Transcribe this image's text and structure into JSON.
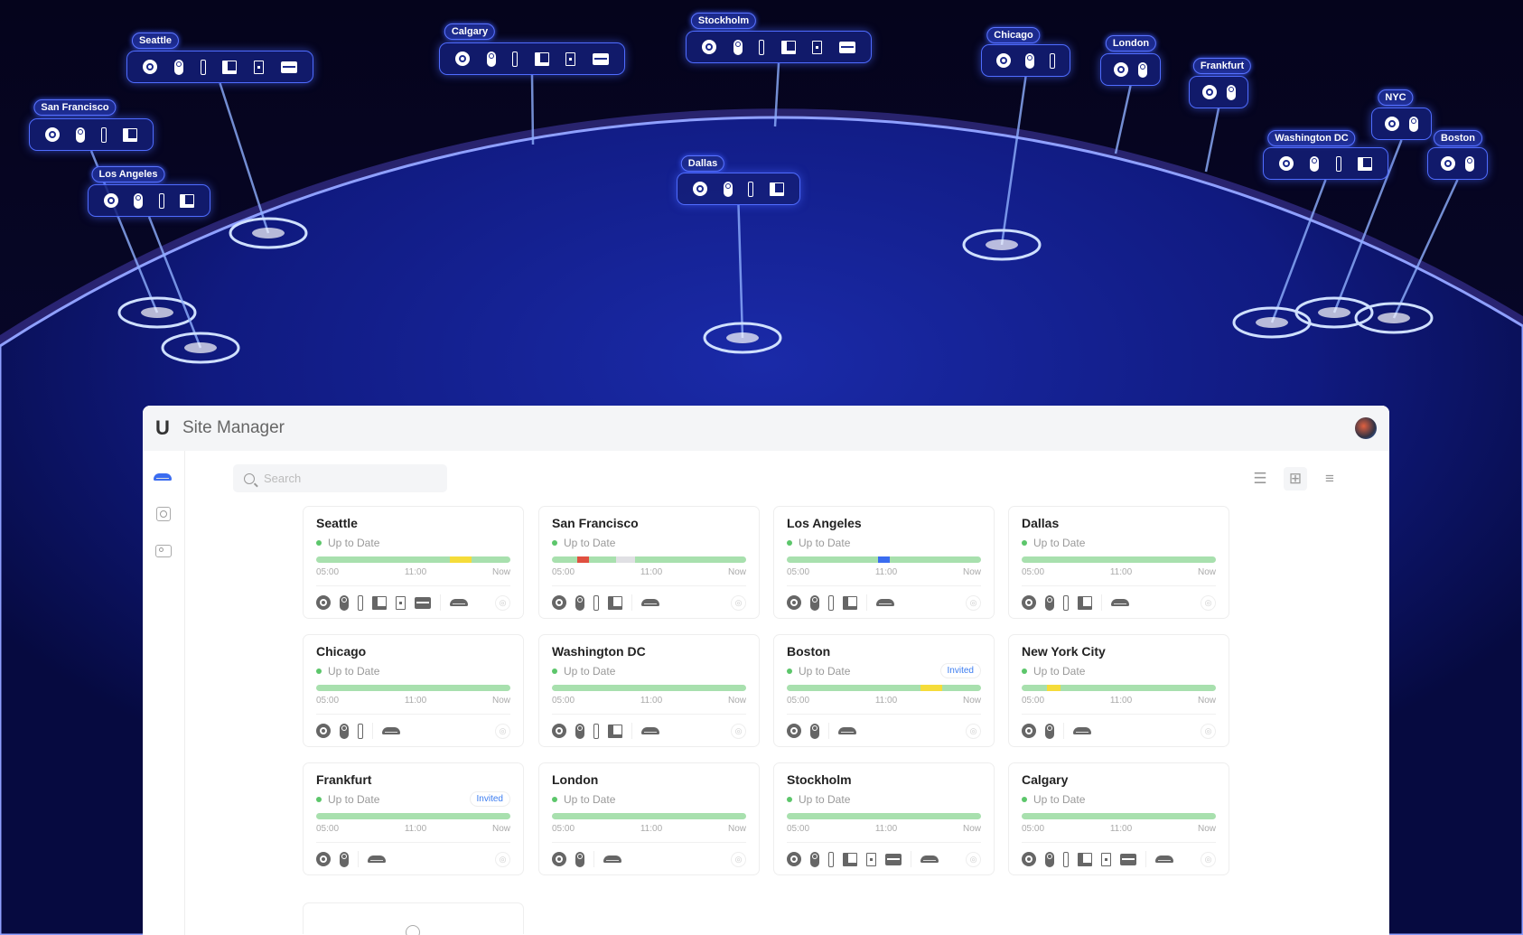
{
  "app": {
    "title": "Site Manager",
    "logo": "U",
    "search_placeholder": "Search"
  },
  "toolbar": {
    "list_view": "list-icon",
    "grid_view": "grid-icon",
    "filter": "sliders-icon",
    "active": "grid"
  },
  "sidebar": {
    "items": [
      {
        "icon": "gateway-icon",
        "active": true
      },
      {
        "icon": "globe-network-icon"
      },
      {
        "icon": "camera-system-icon"
      }
    ]
  },
  "colors": {
    "ok": "#a8e0ae",
    "warn": "#f5dc3a",
    "error": "#e05040",
    "offline": "#e0e0e4",
    "info": "#3b6cf0",
    "accent": "#3b7cf0"
  },
  "time_labels": [
    "05:00",
    "11:00",
    "Now"
  ],
  "globe_labels": [
    {
      "name": "Seattle",
      "devices": [
        "dome",
        "bullet",
        "doorbell",
        "reader",
        "intercom",
        "nvr"
      ]
    },
    {
      "name": "San Francisco",
      "devices": [
        "dome",
        "bullet",
        "doorbell",
        "reader"
      ]
    },
    {
      "name": "Los Angeles",
      "devices": [
        "dome",
        "bullet",
        "doorbell",
        "reader"
      ]
    },
    {
      "name": "Calgary",
      "devices": [
        "dome",
        "bullet",
        "doorbell",
        "reader",
        "intercom",
        "nvr"
      ]
    },
    {
      "name": "Stockholm",
      "devices": [
        "dome",
        "bullet",
        "doorbell",
        "reader",
        "intercom",
        "nvr"
      ]
    },
    {
      "name": "Dallas",
      "devices": [
        "dome",
        "bullet",
        "doorbell",
        "reader"
      ]
    },
    {
      "name": "Chicago",
      "devices": [
        "dome",
        "bullet",
        "doorbell"
      ]
    },
    {
      "name": "London",
      "devices": [
        "dome",
        "bullet"
      ]
    },
    {
      "name": "Frankfurt",
      "devices": [
        "dome",
        "bullet"
      ]
    },
    {
      "name": "NYC",
      "devices": [
        "dome",
        "bullet"
      ]
    },
    {
      "name": "Washington DC",
      "devices": [
        "dome",
        "bullet",
        "doorbell",
        "reader"
      ]
    },
    {
      "name": "Boston",
      "devices": [
        "dome",
        "bullet"
      ]
    }
  ],
  "sites": [
    {
      "name": "Seattle",
      "status": "Up to Date",
      "devices": [
        "dome",
        "bullet",
        "doorbell",
        "reader",
        "intercom",
        "nvr"
      ],
      "segments": [
        {
          "from": 0.69,
          "to": 0.8,
          "state": "warn"
        }
      ]
    },
    {
      "name": "San Francisco",
      "status": "Up to Date",
      "devices": [
        "dome",
        "bullet",
        "doorbell",
        "reader"
      ],
      "segments": [
        {
          "from": 0.13,
          "to": 0.19,
          "state": "error"
        },
        {
          "from": 0.33,
          "to": 0.43,
          "state": "offline"
        }
      ]
    },
    {
      "name": "Los Angeles",
      "status": "Up to Date",
      "devices": [
        "dome",
        "bullet",
        "doorbell",
        "reader"
      ],
      "segments": [
        {
          "from": 0.47,
          "to": 0.53,
          "state": "info"
        }
      ]
    },
    {
      "name": "Dallas",
      "status": "Up to Date",
      "devices": [
        "dome",
        "bullet",
        "doorbell",
        "reader"
      ],
      "segments": []
    },
    {
      "name": "Chicago",
      "status": "Up to Date",
      "devices": [
        "dome",
        "bullet",
        "doorbell"
      ],
      "segments": []
    },
    {
      "name": "Washington DC",
      "status": "Up to Date",
      "devices": [
        "dome",
        "bullet",
        "doorbell",
        "reader"
      ],
      "segments": []
    },
    {
      "name": "Boston",
      "status": "Up to Date",
      "badge": "Invited",
      "devices": [
        "dome",
        "bullet"
      ],
      "segments": [
        {
          "from": 0.69,
          "to": 0.8,
          "state": "warn"
        }
      ]
    },
    {
      "name": "New York City",
      "status": "Up to Date",
      "devices": [
        "dome",
        "bullet"
      ],
      "segments": [
        {
          "from": 0.13,
          "to": 0.2,
          "state": "warn"
        }
      ]
    },
    {
      "name": "Frankfurt",
      "status": "Up to Date",
      "badge": "Invited",
      "devices": [
        "dome",
        "bullet"
      ],
      "segments": []
    },
    {
      "name": "London",
      "status": "Up to Date",
      "devices": [
        "dome",
        "bullet"
      ],
      "segments": []
    },
    {
      "name": "Stockholm",
      "status": "Up to Date",
      "devices": [
        "dome",
        "bullet",
        "doorbell",
        "reader",
        "intercom",
        "nvr"
      ],
      "segments": []
    },
    {
      "name": "Calgary",
      "status": "Up to Date",
      "devices": [
        "dome",
        "bullet",
        "doorbell",
        "reader",
        "intercom",
        "nvr"
      ],
      "segments": []
    }
  ]
}
